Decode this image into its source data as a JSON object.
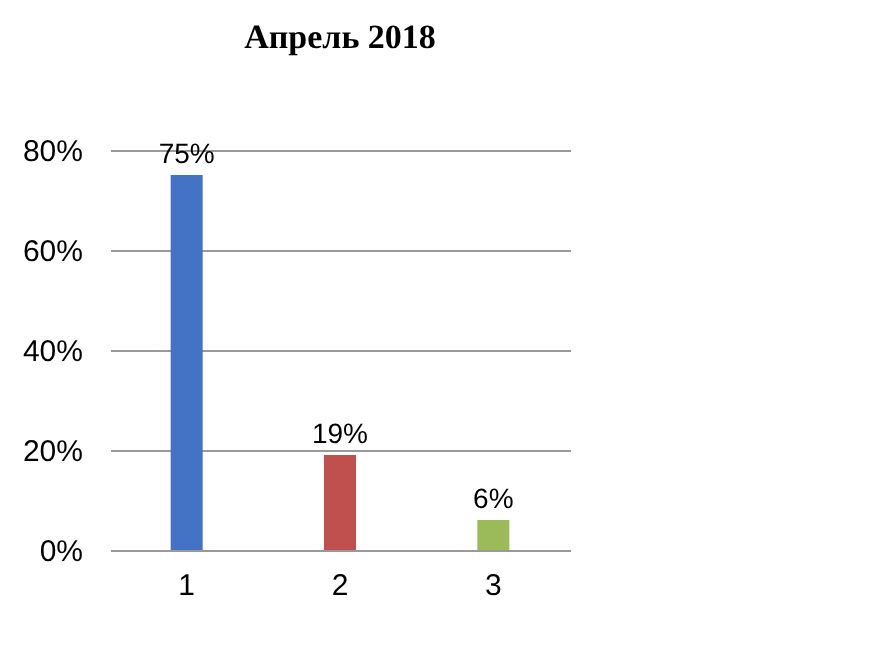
{
  "chart_data": {
    "type": "bar",
    "title": "Апрель 2018",
    "categories": [
      "1",
      "2",
      "3"
    ],
    "values": [
      75,
      19,
      6
    ],
    "colors": [
      "#4472c4",
      "#c0504d",
      "#9bbb59"
    ],
    "value_labels": [
      "75%",
      "19%",
      "6%"
    ],
    "ylim": [
      0,
      80
    ],
    "yticks": [
      {
        "value": 0,
        "label": "0%"
      },
      {
        "value": 20,
        "label": "20%"
      },
      {
        "value": 40,
        "label": "40%"
      },
      {
        "value": 60,
        "label": "60%"
      },
      {
        "value": 80,
        "label": "80%"
      }
    ],
    "grid": "y"
  }
}
